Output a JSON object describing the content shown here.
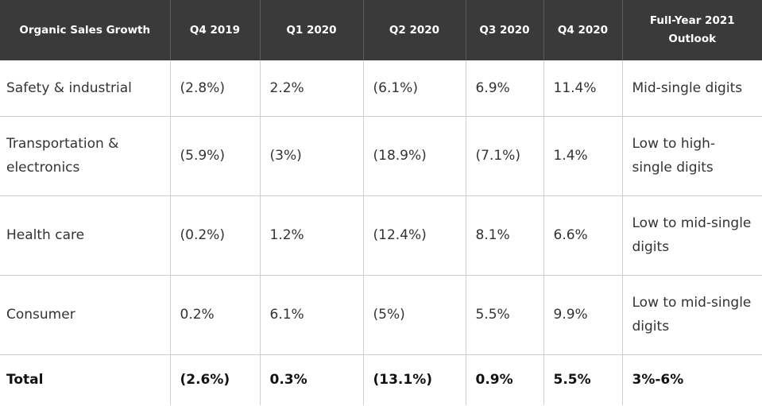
{
  "table": {
    "headers": [
      "Organic Sales Growth",
      "Q4 2019",
      "Q1 2020",
      "Q2 2020",
      "Q3 2020",
      "Q4 2020",
      "Full-Year 2021 Outlook"
    ],
    "rows": [
      {
        "segment": "Safety & industrial",
        "q4_2019": "(2.8%)",
        "q1_2020": "2.2%",
        "q2_2020": "(6.1%)",
        "q3_2020": "6.9%",
        "q4_2020": "11.4%",
        "outlook": "Mid-single digits"
      },
      {
        "segment": "Transportation & electronics",
        "q4_2019": "(5.9%)",
        "q1_2020": "(3%)",
        "q2_2020": "(18.9%)",
        "q3_2020": "(7.1%)",
        "q4_2020": "1.4%",
        "outlook": "Low to high-single digits"
      },
      {
        "segment": "Health care",
        "q4_2019": "(0.2%)",
        "q1_2020": "1.2%",
        "q2_2020": "(12.4%)",
        "q3_2020": "8.1%",
        "q4_2020": "6.6%",
        "outlook": "Low to mid-single digits"
      },
      {
        "segment": "Consumer",
        "q4_2019": "0.2%",
        "q1_2020": "6.1%",
        "q2_2020": "(5%)",
        "q3_2020": "5.5%",
        "q4_2020": "9.9%",
        "outlook": "Low to mid-single digits"
      },
      {
        "segment": "Total",
        "q4_2019": "(2.6%)",
        "q1_2020": "0.3%",
        "q2_2020": "(13.1%)",
        "q3_2020": "0.9%",
        "q4_2020": "5.5%",
        "outlook": "3%-6%"
      }
    ]
  },
  "colors": {
    "header_background": "#3a3a3a",
    "header_text": "#ffffff",
    "body_text": "#333333",
    "grid_line": "#cfcfcf"
  }
}
